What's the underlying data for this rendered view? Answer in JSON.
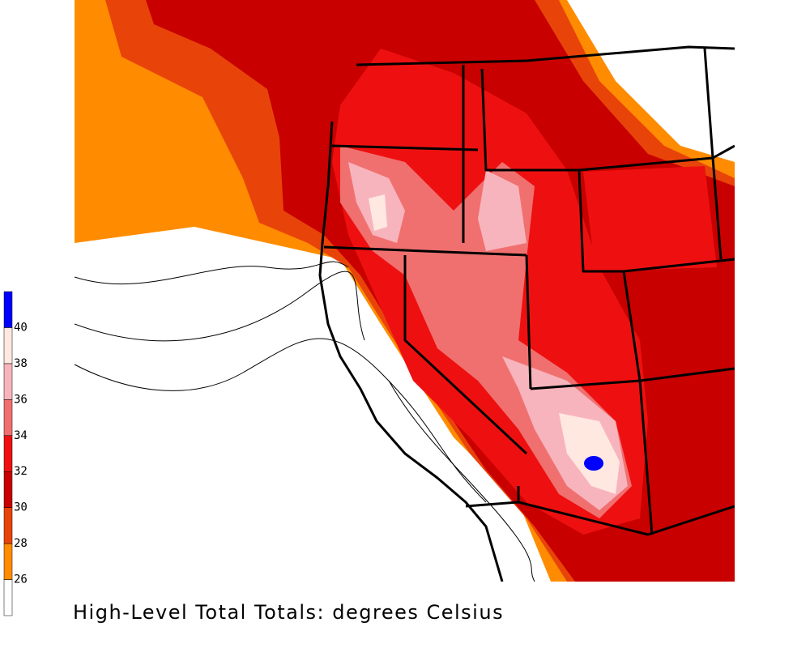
{
  "colorbar": {
    "levels": [
      26,
      28,
      30,
      32,
      34,
      36,
      38,
      40
    ],
    "colors": [
      "#ffffff",
      "#ff8c00",
      "#e8440a",
      "#c80000",
      "#ee1010",
      "#f07070",
      "#f8b4bc",
      "#ffe8e0",
      "#0000ff"
    ]
  },
  "caption": "High-Level Total Totals: degrees Celsius"
}
